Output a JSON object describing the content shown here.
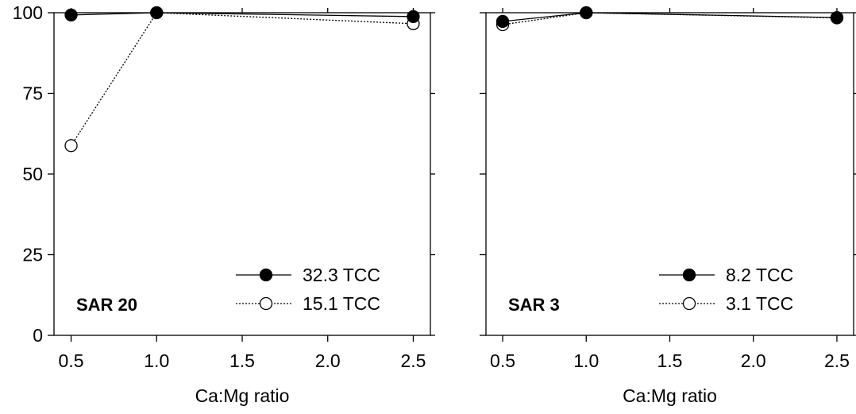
{
  "chart_data": [
    {
      "type": "line",
      "panel_label": "SAR 20",
      "xlabel": "Ca:Mg ratio",
      "ylabel": "",
      "xlim": [
        0.4,
        2.6
      ],
      "ylim": [
        0,
        100
      ],
      "xticks": [
        0.5,
        1.0,
        1.5,
        2.0,
        2.5
      ],
      "xtick_labels": [
        "0.5",
        "1.0",
        "1.5",
        "2.0",
        "2.5"
      ],
      "yticks": [
        0,
        25,
        50,
        75,
        100
      ],
      "ytick_labels": [
        "0",
        "25",
        "50",
        "75",
        "100"
      ],
      "show_ytick_labels": true,
      "grid": false,
      "legend_position": "bottom-right",
      "series": [
        {
          "name": "32.3 TCC",
          "marker": "filled-circle",
          "line": "solid",
          "x": [
            0.5,
            1.0,
            2.5
          ],
          "y": [
            99.3,
            100,
            98.8
          ]
        },
        {
          "name": "15.1 TCC",
          "marker": "open-circle",
          "line": "dotted",
          "x": [
            0.5,
            1.0,
            2.5
          ],
          "y": [
            58.8,
            100,
            96.6
          ]
        }
      ]
    },
    {
      "type": "line",
      "panel_label": "SAR 3",
      "xlabel": "Ca:Mg ratio",
      "ylabel": "",
      "xlim": [
        0.4,
        2.6
      ],
      "ylim": [
        0,
        100
      ],
      "xticks": [
        0.5,
        1.0,
        1.5,
        2.0,
        2.5
      ],
      "xtick_labels": [
        "0.5",
        "1.0",
        "1.5",
        "2.0",
        "2.5"
      ],
      "yticks": [
        0,
        25,
        50,
        75,
        100
      ],
      "ytick_labels": [],
      "show_ytick_labels": false,
      "grid": false,
      "legend_position": "bottom-right",
      "series": [
        {
          "name": "8.2 TCC",
          "marker": "filled-circle",
          "line": "solid",
          "x": [
            0.5,
            1.0,
            2.5
          ],
          "y": [
            97.3,
            100,
            98.5
          ]
        },
        {
          "name": "3.1 TCC",
          "marker": "open-circle",
          "line": "dotted",
          "x": [
            0.5,
            1.0,
            2.5
          ],
          "y": [
            96.3,
            100,
            98.4
          ]
        }
      ]
    }
  ]
}
